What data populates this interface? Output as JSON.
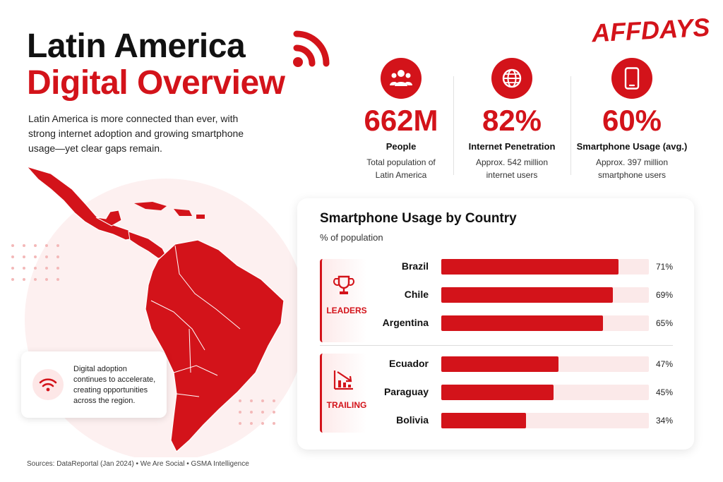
{
  "header": {
    "title_line1": "Latin America",
    "title_line2": "Digital Overview",
    "intro": "Latin America is more connected than ever, with strong internet adoption and growing smartphone usage—yet clear gaps remain.",
    "brand": "AFFDAYS"
  },
  "stats": [
    {
      "icon": "people-icon",
      "value": "662M",
      "label": "People",
      "desc_line1": "Total population of",
      "desc_line2": "Latin America"
    },
    {
      "icon": "globe-icon",
      "value": "82%",
      "label": "Internet Penetration",
      "desc_line1": "Approx. 542 million",
      "desc_line2": "internet users"
    },
    {
      "icon": "smartphone-icon",
      "value": "60%",
      "label": "Smartphone Usage (avg.)",
      "desc_line1": "Approx. 397 million",
      "desc_line2": "smartphone users"
    }
  ],
  "note": {
    "icon": "wifi-icon",
    "text": "Digital adoption continues to accelerate, creating opportunities across the region."
  },
  "source": "Sources: DataReportal (Jan 2024) • We Are Social • GSMA Intelligence",
  "colors": {
    "accent": "#d3131a",
    "accent_light": "#fbe9e9"
  },
  "chart_data": {
    "type": "bar",
    "orientation": "horizontal",
    "title": "Smartphone Usage by Country",
    "subtitle": "% of population",
    "xlim": [
      0,
      100
    ],
    "groups": [
      {
        "name": "LEADERS",
        "icon": "trophy-icon",
        "categories": [
          "Brazil",
          "Chile",
          "Argentina"
        ],
        "values": [
          71,
          69,
          65
        ],
        "labels": [
          "71%",
          "69%",
          "65%"
        ]
      },
      {
        "name": "TRAILING",
        "icon": "declining-chart-icon",
        "categories": [
          "Ecuador",
          "Paraguay",
          "Bolivia"
        ],
        "values": [
          47,
          45,
          34
        ],
        "labels": [
          "47%",
          "45%",
          "34%"
        ]
      }
    ]
  }
}
